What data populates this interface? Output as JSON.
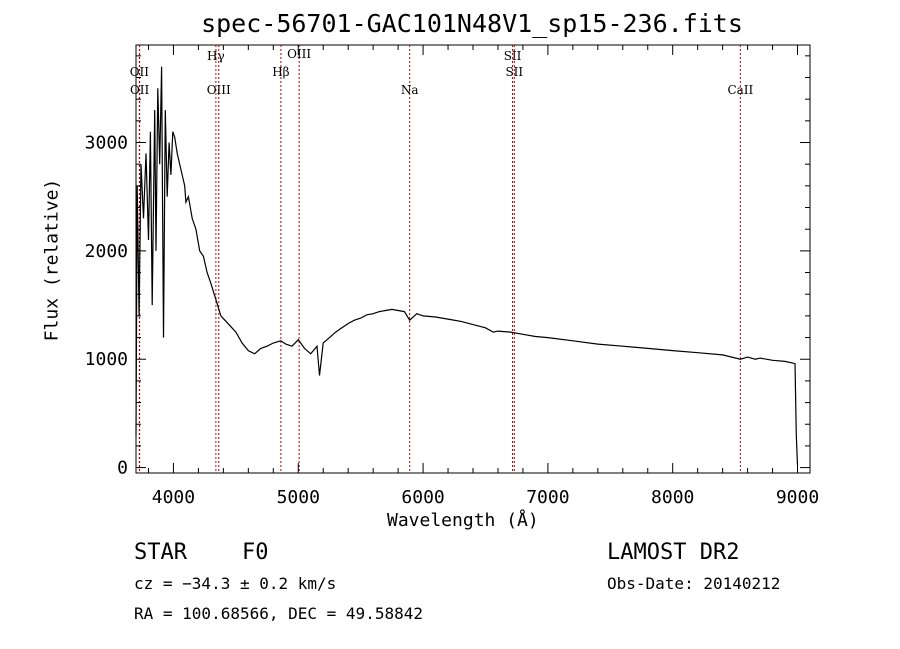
{
  "chart_data": {
    "type": "line",
    "title": "spec-56701-GAC101N48V1_sp15-236.fits",
    "xlabel": "Wavelength (Å)",
    "ylabel": "Flux (relative)",
    "xlim": [
      3700,
      9100
    ],
    "ylim": [
      -50,
      3900
    ],
    "xticks": [
      4000,
      5000,
      6000,
      7000,
      8000,
      9000
    ],
    "yticks": [
      0,
      1000,
      2000,
      3000
    ],
    "grid": false,
    "series": [
      {
        "x": [
          3700,
          3710,
          3725,
          3740,
          3760,
          3780,
          3800,
          3815,
          3830,
          3850,
          3860,
          3875,
          3890,
          3905,
          3920,
          3935,
          3950,
          3965,
          3980,
          3995,
          4010,
          4030,
          4050,
          4070,
          4090,
          4100,
          4120,
          4150,
          4180,
          4210,
          4240,
          4270,
          4300,
          4340,
          4380,
          4420,
          4460,
          4500,
          4550,
          4600,
          4650,
          4700,
          4750,
          4800,
          4860,
          4900,
          4950,
          5000,
          5050,
          5100,
          5150,
          5170,
          5200,
          5250,
          5300,
          5350,
          5400,
          5450,
          5500,
          5550,
          5600,
          5650,
          5700,
          5750,
          5800,
          5850,
          5893,
          5950,
          6000,
          6100,
          6200,
          6300,
          6400,
          6500,
          6563,
          6600,
          6700,
          6800,
          6900,
          7000,
          7200,
          7400,
          7600,
          7800,
          8000,
          8200,
          8400,
          8542,
          8600,
          8662,
          8700,
          8800,
          8900,
          8980,
          8990,
          9000
        ],
        "y": [
          300,
          2600,
          1400,
          2800,
          2300,
          2900,
          2100,
          3100,
          1500,
          3300,
          2000,
          3500,
          2800,
          3700,
          1200,
          3300,
          2500,
          3000,
          2700,
          3100,
          3050,
          2900,
          2800,
          2700,
          2600,
          2450,
          2500,
          2300,
          2200,
          2000,
          1950,
          1800,
          1700,
          1550,
          1400,
          1350,
          1300,
          1250,
          1150,
          1080,
          1050,
          1100,
          1120,
          1150,
          1170,
          1140,
          1120,
          1180,
          1100,
          1050,
          1120,
          850,
          1150,
          1200,
          1250,
          1290,
          1330,
          1360,
          1380,
          1410,
          1420,
          1440,
          1450,
          1460,
          1450,
          1440,
          1360,
          1420,
          1400,
          1390,
          1370,
          1350,
          1320,
          1290,
          1250,
          1260,
          1250,
          1230,
          1210,
          1200,
          1170,
          1140,
          1120,
          1100,
          1080,
          1060,
          1040,
          1000,
          1020,
          1000,
          1010,
          990,
          980,
          960,
          300,
          20
        ]
      }
    ],
    "lines": [
      {
        "label": "OII",
        "x": 3727,
        "row": 0
      },
      {
        "label": "OII",
        "x": 3729,
        "row": 1
      },
      {
        "label": "Hγ",
        "x": 4340,
        "row": 2
      },
      {
        "label": "OIII",
        "x": 4363,
        "row": 1
      },
      {
        "label": "Hβ",
        "x": 4861,
        "row": 0
      },
      {
        "label": "OIII",
        "x": 5007,
        "row": 3
      },
      {
        "label": "Na",
        "x": 5893,
        "row": 1
      },
      {
        "label": "SII",
        "x": 6717,
        "row": 2
      },
      {
        "label": "SII",
        "x": 6731,
        "row": 0
      },
      {
        "label": "CaII",
        "x": 8542,
        "row": 1
      }
    ],
    "line_color": "#b00000"
  },
  "info": {
    "object_class": "STAR",
    "subclass": "F0",
    "survey": "LAMOST DR2",
    "cz": "cz = −34.3 ± 0.2 km/s",
    "obs_date": "Obs-Date: 20140212",
    "coords": "RA = 100.68566, DEC =  49.58842"
  }
}
